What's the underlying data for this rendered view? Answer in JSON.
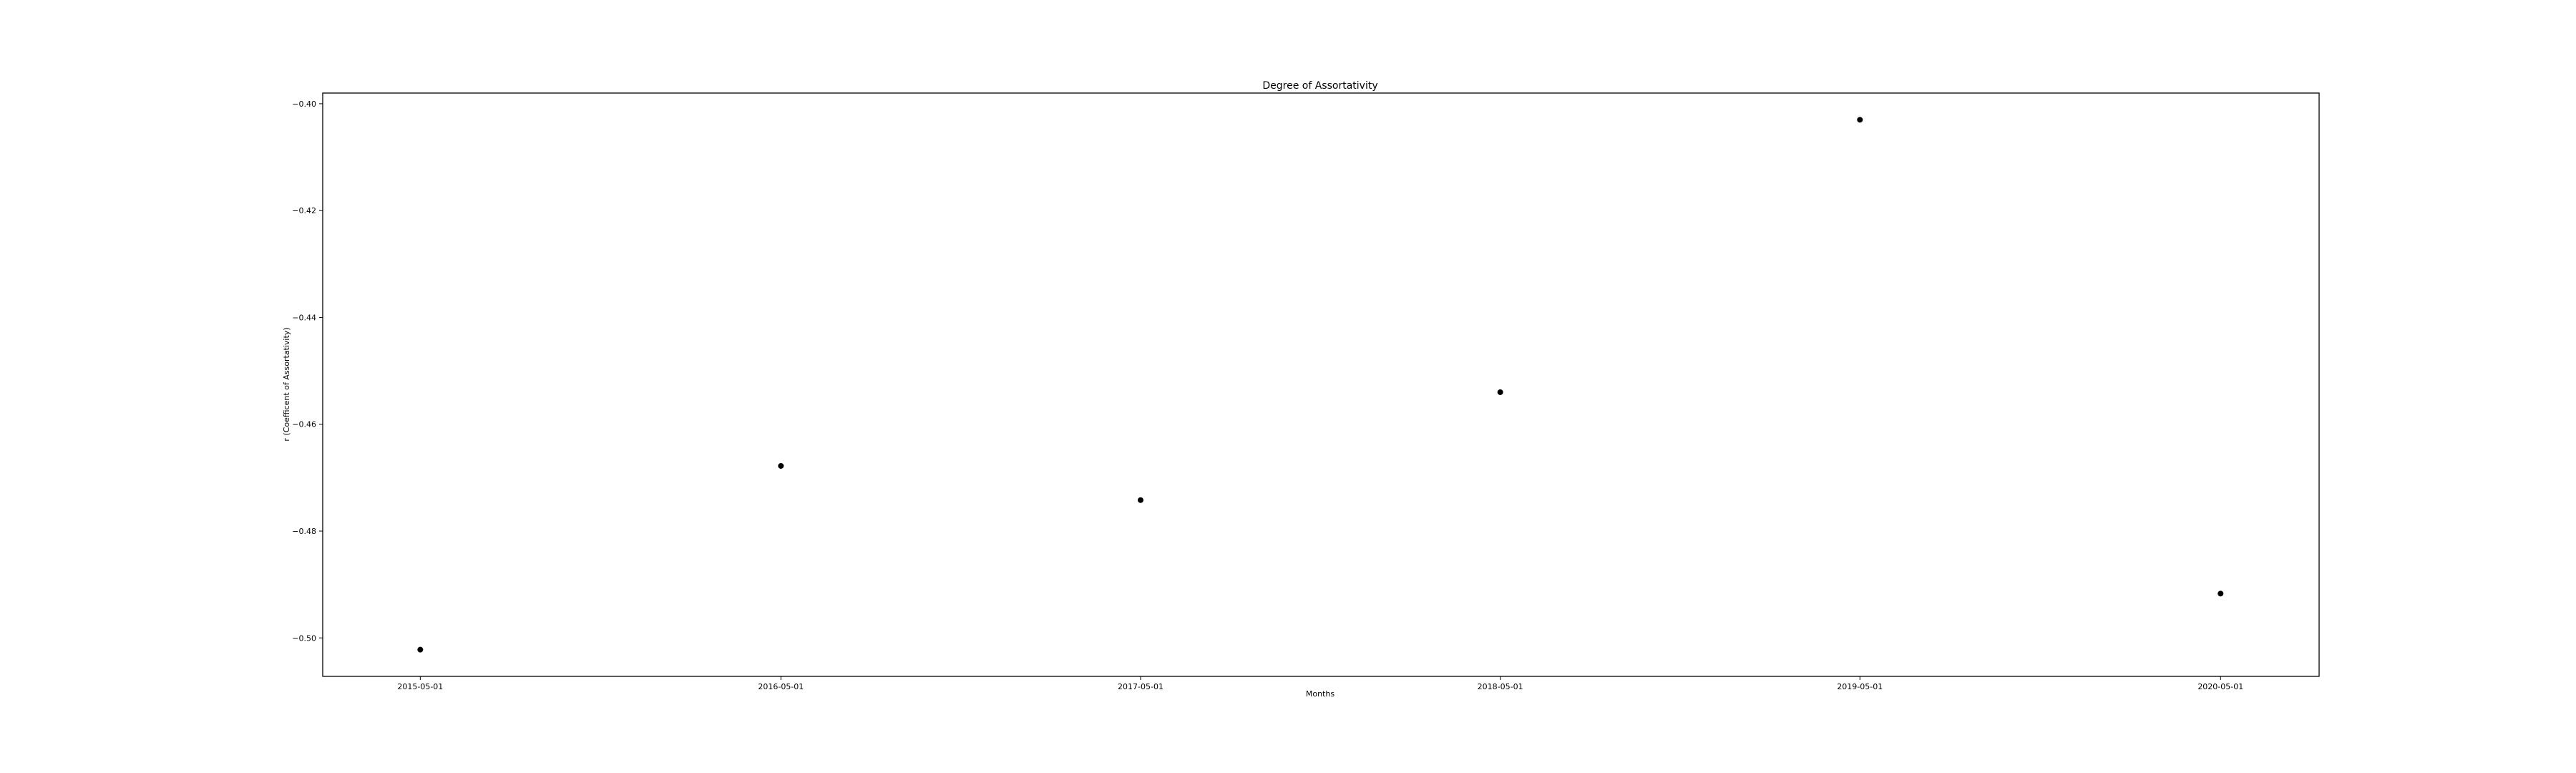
{
  "chart_data": {
    "type": "scatter",
    "title": "Degree of Assortativity",
    "xlabel": "Months",
    "ylabel": "r (Coefficent of Assortativity)",
    "x": [
      "2015-05-01",
      "2016-05-01",
      "2017-05-01",
      "2018-05-01",
      "2019-05-01",
      "2020-05-01"
    ],
    "series": [
      {
        "values": [
          -0.5022,
          -0.4678,
          -0.4742,
          -0.454,
          -0.403,
          -0.4917
        ],
        "color": "#000000",
        "marker": "circle"
      }
    ],
    "x_ticks": [
      "2015-05-01",
      "2016-05-01",
      "2017-05-01",
      "2018-05-01",
      "2019-05-01",
      "2020-05-01"
    ],
    "y_ticks": [
      "-0.40",
      "-0.42",
      "-0.44",
      "-0.46",
      "-0.48",
      "-0.50"
    ],
    "y_tick_values": [
      -0.4,
      -0.42,
      -0.44,
      -0.46,
      -0.48,
      -0.5
    ],
    "xlim": [
      "2015-01-22",
      "2020-08-09"
    ],
    "ylim": [
      -0.5072,
      -0.398
    ],
    "grid": false,
    "legend": false
  }
}
